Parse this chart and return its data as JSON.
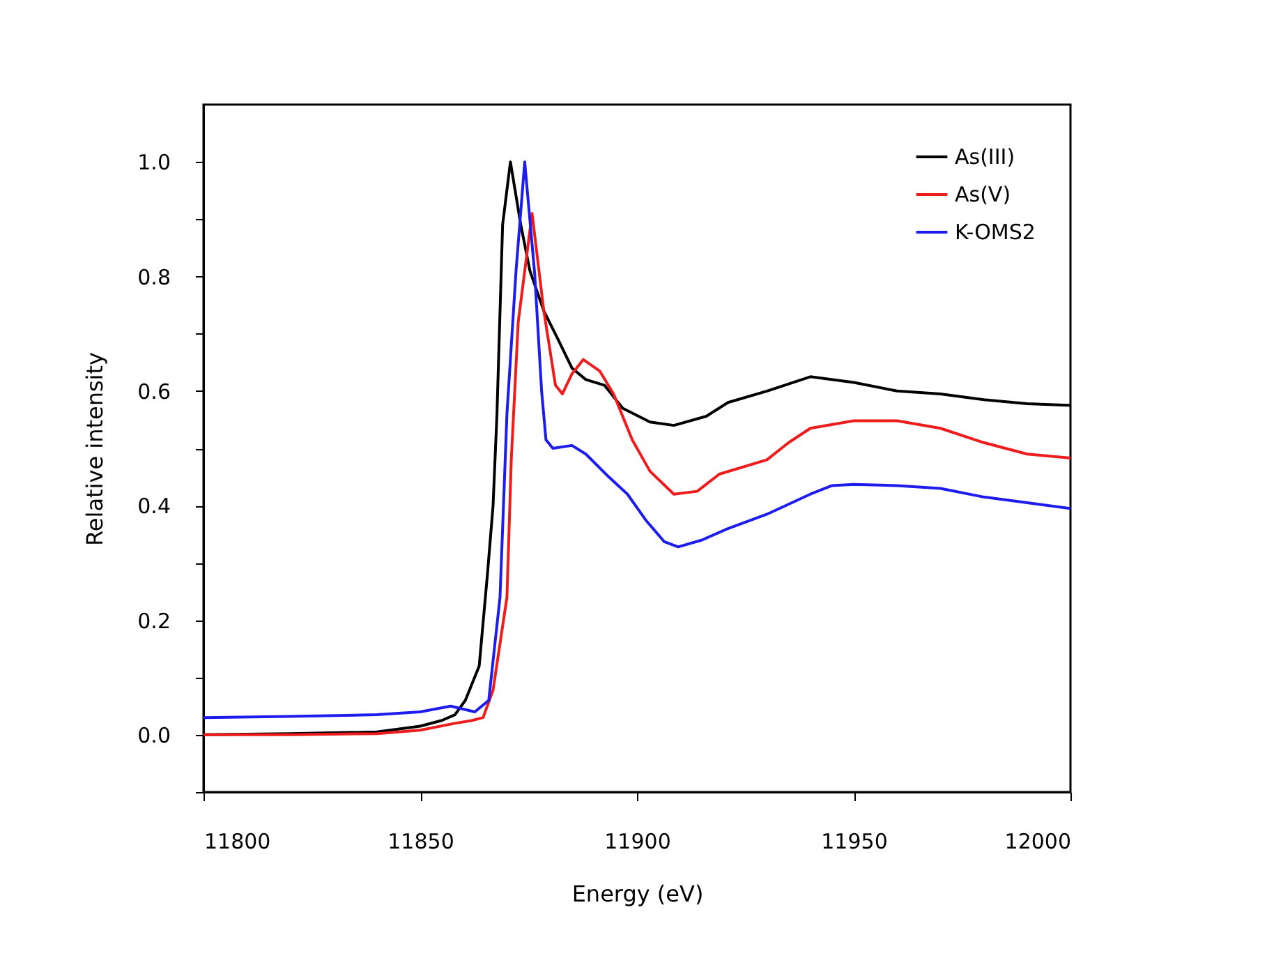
{
  "chart_data": {
    "type": "line",
    "xlabel": "Energy (eV)",
    "ylabel": "Relative intensity",
    "xlim": [
      11800,
      12000
    ],
    "ylim": [
      -0.1,
      1.1
    ],
    "xticks": [
      11800,
      11850,
      11900,
      11950,
      12000
    ],
    "yticks": [
      {
        "value": -0.1,
        "label": null
      },
      {
        "value": 0,
        "label": "0.0"
      },
      {
        "value": 0.1,
        "label": null
      },
      {
        "value": 0.2,
        "label": "0.2"
      },
      {
        "value": 0.3,
        "label": null
      },
      {
        "value": 0.4,
        "label": "0.4"
      },
      {
        "value": 0.5,
        "label": null
      },
      {
        "value": 0.6,
        "label": "0.6"
      },
      {
        "value": 0.7,
        "label": null
      },
      {
        "value": 0.8,
        "label": "0.8"
      },
      {
        "value": 0.9,
        "label": null
      },
      {
        "value": 1.0,
        "label": "1.0"
      }
    ],
    "grid": false,
    "legend": "top right",
    "marker": "none",
    "line_style": "solid",
    "series": [
      {
        "name": "As(III)",
        "color": "#000000",
        "x": [
          11800,
          11820,
          11840,
          11850,
          11855,
          11858,
          11860.4,
          11863.6,
          11865.5,
          11866.8,
          11867.7,
          11869,
          11870.8,
          11873.2,
          11875.3,
          11878.5,
          11881.8,
          11885,
          11888.2,
          11892.5,
          11896.7,
          11903,
          11908.5,
          11916,
          11921,
          11930,
          11940,
          11950,
          11960,
          11970,
          11980,
          11990,
          12000
        ],
        "values": [
          0.0,
          0.002,
          0.005,
          0.015,
          0.025,
          0.035,
          0.06,
          0.12,
          0.28,
          0.4,
          0.56,
          0.89,
          1.0,
          0.89,
          0.81,
          0.74,
          0.69,
          0.64,
          0.62,
          0.61,
          0.57,
          0.546,
          0.54,
          0.556,
          0.58,
          0.6,
          0.625,
          0.615,
          0.6,
          0.595,
          0.585,
          0.578,
          0.575
        ]
      },
      {
        "name": "As(V)",
        "color": "#ee1c1c",
        "x": [
          11800,
          11820,
          11840,
          11850,
          11858,
          11862,
          11864.5,
          11866.8,
          11870,
          11871,
          11872.6,
          11875.8,
          11878.5,
          11881.2,
          11882.8,
          11885,
          11887.6,
          11891.4,
          11894.6,
          11898.9,
          11903,
          11908.5,
          11913.9,
          11919,
          11930,
          11935,
          11940,
          11950,
          11960,
          11970,
          11980,
          11990,
          12000
        ],
        "values": [
          0.0,
          0.0,
          0.002,
          0.008,
          0.02,
          0.025,
          0.03,
          0.078,
          0.24,
          0.48,
          0.72,
          0.91,
          0.74,
          0.61,
          0.595,
          0.63,
          0.655,
          0.635,
          0.595,
          0.515,
          0.46,
          0.42,
          0.425,
          0.455,
          0.48,
          0.51,
          0.535,
          0.548,
          0.548,
          0.535,
          0.51,
          0.49,
          0.483
        ]
      },
      {
        "name": "K-OMS2",
        "color": "#1c1cee",
        "x": [
          11800,
          11820,
          11840,
          11850,
          11857,
          11862.6,
          11865.8,
          11868.4,
          11870,
          11872.1,
          11874.1,
          11876.4,
          11878,
          11879,
          11880.6,
          11885,
          11888.2,
          11893.5,
          11897.8,
          11902,
          11906.3,
          11909.5,
          11915,
          11921,
          11930,
          11940,
          11945,
          11950,
          11960,
          11970,
          11980,
          11990,
          12000
        ],
        "values": [
          0.03,
          0.032,
          0.035,
          0.04,
          0.05,
          0.04,
          0.06,
          0.24,
          0.56,
          0.81,
          1.0,
          0.805,
          0.6,
          0.515,
          0.5,
          0.505,
          0.49,
          0.45,
          0.42,
          0.375,
          0.337,
          0.328,
          0.34,
          0.36,
          0.385,
          0.42,
          0.435,
          0.437,
          0.435,
          0.43,
          0.415,
          0.405,
          0.395
        ]
      }
    ]
  }
}
